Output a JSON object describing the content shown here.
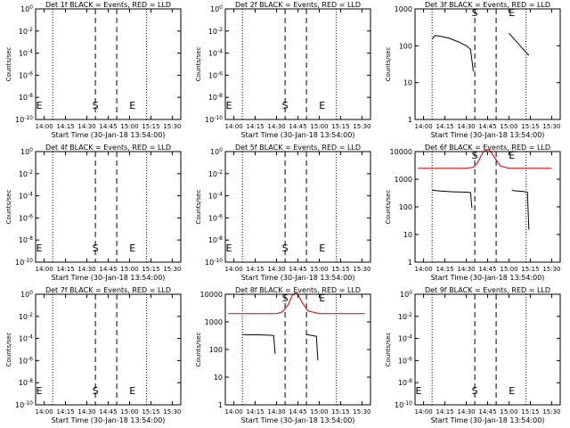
{
  "xlabel": "Start Time (30-Jan-18 13:54:00)",
  "ylabel": "Counts/sec",
  "x_ticks": [
    "14:00",
    "14:15",
    "14:30",
    "14:45",
    "15:00",
    "15:15",
    "15:30"
  ],
  "marker_labels": {
    "start": "S",
    "end": "E"
  },
  "colors": {
    "events": "#000000",
    "lld": "#d81e1e",
    "axes": "#000000"
  },
  "chart_data": [
    {
      "type": "line",
      "title": "Det 1f BLACK = Events, RED = LLD",
      "yscale": "log",
      "y_ticks": [
        "10^0",
        "10^-2",
        "10^-4",
        "10^-6",
        "10^-8",
        "10^-10"
      ],
      "x_range_min": [
        -6,
        96
      ],
      "dotted_x": [
        6,
        72
      ],
      "dashed_x": [
        36,
        51
      ],
      "s_x": 36,
      "e_x": 62,
      "series": []
    },
    {
      "type": "line",
      "title": "Det 2f BLACK = Events, RED = LLD",
      "yscale": "log",
      "y_ticks": [
        "10^0",
        "10^-2",
        "10^-4",
        "10^-6",
        "10^-8",
        "10^-10"
      ],
      "x_range_min": [
        -6,
        96
      ],
      "dotted_x": [
        6,
        72
      ],
      "dashed_x": [
        36,
        51
      ],
      "s_x": 36,
      "e_x": 62,
      "series": []
    },
    {
      "type": "line",
      "title": "Det 3f BLACK = Events, RED = LLD",
      "yscale": "log",
      "y_ticks": [
        "1000",
        "100",
        "10",
        "1"
      ],
      "y_range": [
        1,
        1000
      ],
      "x_range_min": [
        -6,
        96
      ],
      "dotted_x": [
        6,
        72
      ],
      "dashed_x": [
        36,
        51
      ],
      "s_x": 36,
      "e_x": 62,
      "series": [
        {
          "color": "black",
          "x": [
            6,
            8,
            12,
            18,
            24,
            30,
            33,
            35
          ],
          "y": [
            150,
            190,
            180,
            160,
            130,
            100,
            80,
            20
          ]
        },
        {
          "color": "black",
          "x": [
            60,
            62,
            66,
            70,
            74
          ],
          "y": [
            220,
            180,
            120,
            80,
            55
          ]
        }
      ]
    },
    {
      "type": "line",
      "title": "Det 4f BLACK = Events, RED = LLD",
      "yscale": "log",
      "y_ticks": [
        "10^0",
        "10^-2",
        "10^-4",
        "10^-6",
        "10^-8",
        "10^-10"
      ],
      "x_range_min": [
        -6,
        96
      ],
      "dotted_x": [
        6,
        72
      ],
      "dashed_x": [
        36,
        51
      ],
      "s_x": 36,
      "e_x": 62,
      "series": []
    },
    {
      "type": "line",
      "title": "Det 5f BLACK = Events, RED = LLD",
      "yscale": "log",
      "y_ticks": [
        "10^0",
        "10^-2",
        "10^-4",
        "10^-6",
        "10^-8",
        "10^-10"
      ],
      "x_range_min": [
        -6,
        96
      ],
      "dotted_x": [
        6,
        72
      ],
      "dashed_x": [
        36,
        51
      ],
      "s_x": 36,
      "e_x": 62,
      "series": []
    },
    {
      "type": "line",
      "title": "Det 6f BLACK = Events, RED = LLD",
      "yscale": "log",
      "y_ticks": [
        "10000",
        "1000",
        "100",
        "10",
        "1"
      ],
      "y_range": [
        1,
        10000
      ],
      "x_range_min": [
        -6,
        96
      ],
      "dotted_x": [
        6,
        72
      ],
      "dashed_x": [
        36,
        51
      ],
      "s_x": 36,
      "e_x": 62,
      "series": [
        {
          "color": "red",
          "x": [
            -4,
            30,
            35,
            38,
            42,
            46,
            50,
            54,
            60,
            70,
            90
          ],
          "y": [
            2500,
            2500,
            2700,
            4000,
            10000,
            12000,
            6000,
            3000,
            2500,
            2500,
            2500
          ]
        },
        {
          "color": "black",
          "x": [
            6,
            10,
            20,
            30,
            33,
            34
          ],
          "y": [
            400,
            380,
            350,
            340,
            330,
            90
          ]
        },
        {
          "color": "black",
          "x": [
            62,
            64,
            70,
            73,
            74
          ],
          "y": [
            400,
            380,
            360,
            340,
            15
          ]
        }
      ]
    },
    {
      "type": "line",
      "title": "Det 7f BLACK = Events, RED = LLD",
      "yscale": "log",
      "y_ticks": [
        "10^0",
        "10^-2",
        "10^-4",
        "10^-6",
        "10^-8",
        "10^-10"
      ],
      "x_range_min": [
        -6,
        96
      ],
      "dotted_x": [
        6,
        72
      ],
      "dashed_x": [
        36,
        51
      ],
      "s_x": 36,
      "e_x": 62,
      "series": []
    },
    {
      "type": "line",
      "title": "Det 8f BLACK = Events, RED = LLD",
      "yscale": "log",
      "y_ticks": [
        "10000",
        "1000",
        "100",
        "10",
        "1"
      ],
      "y_range": [
        1,
        10000
      ],
      "x_range_min": [
        -6,
        96
      ],
      "dotted_x": [
        6,
        72
      ],
      "dashed_x": [
        36,
        51
      ],
      "s_x": 36,
      "e_x": 62,
      "series": [
        {
          "color": "red",
          "x": [
            -4,
            30,
            34,
            38,
            41,
            44,
            48,
            52,
            60,
            70,
            92
          ],
          "y": [
            2000,
            2000,
            2300,
            4000,
            9000,
            12000,
            5000,
            2500,
            2000,
            2000,
            2000
          ]
        },
        {
          "color": "black",
          "x": [
            6,
            10,
            18,
            25,
            28,
            29
          ],
          "y": [
            350,
            340,
            340,
            330,
            320,
            70
          ]
        },
        {
          "color": "black",
          "x": [
            51,
            55,
            58,
            59
          ],
          "y": [
            350,
            320,
            300,
            40
          ]
        }
      ]
    },
    {
      "type": "line",
      "title": "Det 9f BLACK = Events, RED = LLD",
      "yscale": "log",
      "y_ticks": [
        "10^0",
        "10^-2",
        "10^-4",
        "10^-6",
        "10^-8",
        "10^-10"
      ],
      "x_range_min": [
        -6,
        96
      ],
      "dotted_x": [
        6,
        72
      ],
      "dashed_x": [
        36,
        51
      ],
      "s_x": 36,
      "e_x": 62,
      "series": []
    }
  ]
}
